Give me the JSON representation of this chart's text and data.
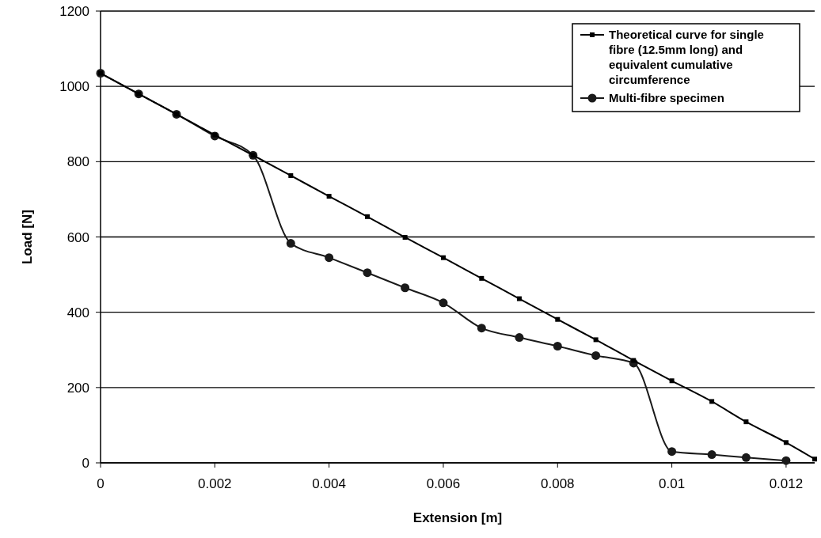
{
  "chart_data": {
    "type": "line",
    "xlabel": "Extension [m]",
    "ylabel": "Load [N]",
    "xlim": [
      0,
      0.0125
    ],
    "xticks": [
      0,
      0.002,
      0.004,
      0.006,
      0.008,
      0.01,
      0.012
    ],
    "ylim": [
      0,
      1200
    ],
    "yticks": [
      0,
      200,
      400,
      600,
      800,
      1000,
      1200
    ],
    "grid": "y",
    "legend": "top right",
    "series": [
      {
        "name": "Theoretical curve for single fibre (12.5mm long) and equivalent cumulative circumference",
        "color": "#000000",
        "marker": "square",
        "x": [
          0,
          0.000667,
          0.00133,
          0.002,
          0.00267,
          0.00333,
          0.004,
          0.00467,
          0.00533,
          0.006,
          0.00667,
          0.00733,
          0.008,
          0.00867,
          0.00933,
          0.01,
          0.0107,
          0.0113,
          0.012,
          0.0125
        ],
        "values": [
          1035,
          980,
          926,
          871,
          817,
          763,
          708,
          654,
          599,
          545,
          490,
          436,
          381,
          327,
          272,
          218,
          163,
          109,
          54,
          10
        ]
      },
      {
        "name": "Multi-fibre specimen",
        "color": "#1a1a1a",
        "marker": "circle",
        "x": [
          0,
          0.000667,
          0.00133,
          0.002,
          0.00267,
          0.00333,
          0.004,
          0.00467,
          0.00533,
          0.006,
          0.00667,
          0.00733,
          0.008,
          0.00867,
          0.00933,
          0.01,
          0.0107,
          0.0113,
          0.012
        ],
        "values": [
          1035,
          980,
          926,
          868,
          817,
          583,
          545,
          505,
          465,
          425,
          358,
          333,
          310,
          285,
          265,
          30,
          22,
          14,
          6
        ]
      }
    ]
  }
}
